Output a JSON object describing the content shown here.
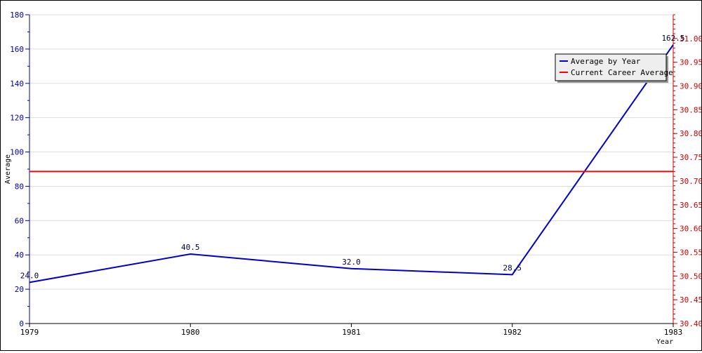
{
  "chart_data": {
    "type": "line",
    "title": "",
    "xlabel": "Year",
    "ylabel": "Average",
    "categories": [
      "1979",
      "1980",
      "1981",
      "1982",
      "1983"
    ],
    "grid": true,
    "legend_position": "top-right",
    "y_left": {
      "range": [
        0,
        180
      ],
      "ticks": [
        "0",
        "20",
        "40",
        "60",
        "80",
        "100",
        "120",
        "140",
        "160",
        "180"
      ],
      "color": "#0000aa"
    },
    "y_right": {
      "range": [
        30.4,
        31.05
      ],
      "ticks": [
        "30.40",
        "30.45",
        "30.50",
        "30.55",
        "30.60",
        "30.65",
        "30.70",
        "30.75",
        "30.80",
        "30.85",
        "30.90",
        "30.95",
        "31.00"
      ],
      "color": "#cc0000"
    },
    "series": [
      {
        "name": "Average by Year",
        "axis": "left",
        "color": "#0000cc",
        "values": [
          24.0,
          40.5,
          32.0,
          28.5,
          162.5
        ],
        "labels": [
          "24.0",
          "40.5",
          "32.0",
          "28.5",
          "162.5"
        ]
      },
      {
        "name": "Current Career Average",
        "axis": "right",
        "color": "#ff0000",
        "values": [
          30.72,
          30.72,
          30.72,
          30.72,
          30.72
        ]
      }
    ]
  }
}
